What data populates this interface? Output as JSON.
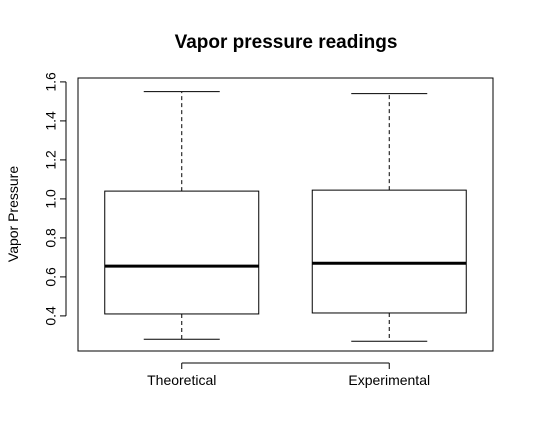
{
  "chart_data": {
    "type": "boxplot",
    "title": "Vapor pressure readings",
    "xlabel": "",
    "ylabel": "Vapor Pressure",
    "ylim": [
      0.22,
      1.62
    ],
    "yticks": [
      0.4,
      0.6,
      0.8,
      1.0,
      1.2,
      1.4,
      1.6
    ],
    "ytick_labels": [
      "0.4",
      "0.6",
      "0.8",
      "1.0",
      "1.2",
      "1.4",
      "1.6"
    ],
    "grid": false,
    "legend": "none",
    "categories": [
      "Theoretical",
      "Experimental"
    ],
    "boxes": [
      {
        "category": "Theoretical",
        "min": 0.28,
        "q1": 0.41,
        "median": 0.655,
        "q3": 1.04,
        "max": 1.55
      },
      {
        "category": "Experimental",
        "min": 0.27,
        "q1": 0.415,
        "median": 0.67,
        "q3": 1.045,
        "max": 1.54
      }
    ]
  }
}
